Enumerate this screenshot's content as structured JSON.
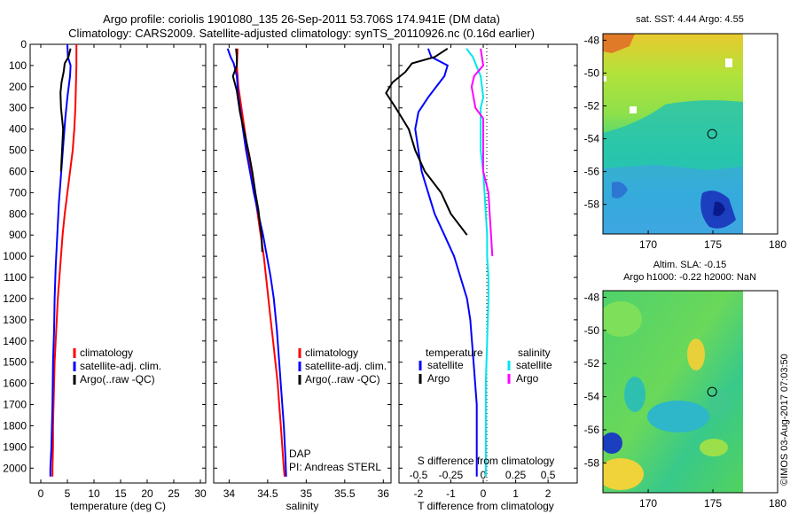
{
  "title": {
    "line1": "Argo profile: coriolis 1901080_135 26-Sep-2011 53.706S 174.941E (DM data)",
    "line2": "Climatology: CARS2009. Satellite-adjusted climatology: synTS_20110926.nc (0.16d earlier)"
  },
  "colors": {
    "clim": "#ff0000",
    "sat": "#0000ff",
    "argo": "#000000",
    "sat_s": "#00e5ee",
    "argo_s": "#ff00ff"
  },
  "chart_data": [
    {
      "type": "line",
      "id": "temperature",
      "xlabel": "temperature (deg C)",
      "ylabel": "",
      "xlim": [
        -2,
        31
      ],
      "ylim": [
        2070,
        0
      ],
      "xticks": [
        0,
        5,
        10,
        15,
        20,
        25,
        30
      ],
      "yticks": [
        0,
        100,
        200,
        300,
        400,
        500,
        600,
        700,
        800,
        900,
        1000,
        1100,
        1200,
        1300,
        1400,
        1500,
        1600,
        1700,
        1800,
        1900,
        2000
      ],
      "legend": [
        "climatology",
        "satellite-adj. clim.",
        "Argo(..raw -QC)"
      ],
      "legend_position": "lower-right",
      "series": [
        {
          "name": "climatology",
          "color": "#ff0000",
          "points": [
            [
              6.7,
              0
            ],
            [
              6.7,
              100
            ],
            [
              6.6,
              200
            ],
            [
              6.5,
              300
            ],
            [
              6.3,
              400
            ],
            [
              6.0,
              500
            ],
            [
              5.5,
              600
            ],
            [
              5.0,
              700
            ],
            [
              4.5,
              800
            ],
            [
              4.1,
              900
            ],
            [
              3.8,
              1000
            ],
            [
              3.5,
              1100
            ],
            [
              3.2,
              1200
            ],
            [
              3.0,
              1300
            ],
            [
              2.8,
              1400
            ],
            [
              2.6,
              1500
            ],
            [
              2.5,
              1600
            ],
            [
              2.4,
              1700
            ],
            [
              2.3,
              1800
            ],
            [
              2.3,
              1900
            ],
            [
              2.2,
              2000
            ],
            [
              2.2,
              2040
            ]
          ]
        },
        {
          "name": "satellite-adj. clim.",
          "color": "#0000ff",
          "points": [
            [
              5.0,
              0
            ],
            [
              5.1,
              60
            ],
            [
              5.6,
              100
            ],
            [
              5.5,
              150
            ],
            [
              5.0,
              250
            ],
            [
              4.6,
              350
            ],
            [
              4.3,
              450
            ],
            [
              4.0,
              550
            ],
            [
              3.7,
              650
            ],
            [
              3.4,
              750
            ],
            [
              3.2,
              850
            ],
            [
              3.0,
              950
            ],
            [
              2.8,
              1050
            ],
            [
              2.6,
              1200
            ],
            [
              2.5,
              1350
            ],
            [
              2.3,
              1500
            ],
            [
              2.2,
              1700
            ],
            [
              2.0,
              1900
            ],
            [
              1.8,
              2000
            ],
            [
              1.8,
              2040
            ]
          ]
        },
        {
          "name": "Argo(..raw -QC)",
          "color": "#000000",
          "points": [
            [
              5.6,
              20
            ],
            [
              5.2,
              60
            ],
            [
              4.5,
              90
            ],
            [
              4.3,
              130
            ],
            [
              3.9,
              180
            ],
            [
              3.7,
              230
            ],
            [
              3.8,
              300
            ],
            [
              4.0,
              350
            ],
            [
              4.2,
              400
            ],
            [
              4.1,
              450
            ],
            [
              4.0,
              500
            ],
            [
              3.9,
              550
            ],
            [
              3.8,
              600
            ]
          ]
        }
      ]
    },
    {
      "type": "line",
      "id": "salinity",
      "xlabel": "salinity",
      "ylabel": "",
      "xlim": [
        33.8,
        36.1
      ],
      "ylim": [
        2070,
        0
      ],
      "xticks": [
        34,
        34.5,
        35,
        35.5,
        36
      ],
      "legend": [
        "climatology",
        "satellite-adj. clim.",
        "Argo(..raw -QC)"
      ],
      "legend_position": "lower-right",
      "annotation": [
        "DAP",
        "PI: Andreas STERL"
      ],
      "series": [
        {
          "name": "climatology",
          "color": "#ff0000",
          "points": [
            [
              34.11,
              20
            ],
            [
              34.1,
              100
            ],
            [
              34.12,
              200
            ],
            [
              34.16,
              300
            ],
            [
              34.2,
              400
            ],
            [
              34.24,
              500
            ],
            [
              34.29,
              600
            ],
            [
              34.33,
              700
            ],
            [
              34.37,
              800
            ],
            [
              34.41,
              900
            ],
            [
              34.45,
              1000
            ],
            [
              34.48,
              1100
            ],
            [
              34.51,
              1200
            ],
            [
              34.54,
              1300
            ],
            [
              34.57,
              1400
            ],
            [
              34.6,
              1500
            ],
            [
              34.63,
              1600
            ],
            [
              34.65,
              1700
            ],
            [
              34.67,
              1800
            ],
            [
              34.69,
              1900
            ],
            [
              34.71,
              2000
            ],
            [
              34.72,
              2040
            ]
          ]
        },
        {
          "name": "satellite-adj. clim.",
          "color": "#0000ff",
          "points": [
            [
              33.98,
              20
            ],
            [
              34.02,
              60
            ],
            [
              34.06,
              90
            ],
            [
              34.1,
              150
            ],
            [
              34.12,
              250
            ],
            [
              34.14,
              300
            ],
            [
              34.18,
              400
            ],
            [
              34.22,
              500
            ],
            [
              34.27,
              600
            ],
            [
              34.32,
              700
            ],
            [
              34.38,
              800
            ],
            [
              34.44,
              900
            ],
            [
              34.49,
              1000
            ],
            [
              34.54,
              1100
            ],
            [
              34.58,
              1200
            ],
            [
              34.62,
              1350
            ],
            [
              34.65,
              1500
            ],
            [
              34.68,
              1650
            ],
            [
              34.71,
              1800
            ],
            [
              34.73,
              1950
            ],
            [
              34.74,
              2040
            ]
          ]
        },
        {
          "name": "Argo(..raw -QC)",
          "color": "#000000",
          "points": [
            [
              34.09,
              20
            ],
            [
              34.1,
              60
            ],
            [
              34.1,
              100
            ],
            [
              34.05,
              150
            ],
            [
              34.1,
              220
            ],
            [
              34.14,
              320
            ],
            [
              34.2,
              420
            ],
            [
              34.26,
              520
            ],
            [
              34.3,
              600
            ],
            [
              34.34,
              700
            ],
            [
              34.38,
              780
            ],
            [
              34.4,
              850
            ],
            [
              34.42,
              900
            ],
            [
              34.43,
              980
            ]
          ]
        }
      ]
    },
    {
      "type": "line",
      "id": "difference",
      "xlabel": "T difference from climatology",
      "xlabel2": "S difference from climatology",
      "xlim": [
        -2.6,
        2.9
      ],
      "ylim": [
        2070,
        0
      ],
      "xticks": [
        -2,
        -1,
        0,
        1,
        2
      ],
      "xticks2_labels": [
        "-0.5",
        "-0.25",
        "0",
        "0.25",
        "0.5"
      ],
      "legend_headers": [
        "temperature",
        "salinity"
      ],
      "legend_left": [
        "satellite",
        "Argo"
      ],
      "legend_right": [
        "satellite",
        "Argo"
      ],
      "legend_position": "lower",
      "series": [
        {
          "name": "T satellite",
          "color": "#0000ff",
          "points": [
            [
              -1.7,
              20
            ],
            [
              -1.6,
              60
            ],
            [
              -1.1,
              100
            ],
            [
              -1.2,
              150
            ],
            [
              -1.7,
              250
            ],
            [
              -2.0,
              320
            ],
            [
              -2.1,
              400
            ],
            [
              -2.0,
              500
            ],
            [
              -1.9,
              600
            ],
            [
              -1.7,
              700
            ],
            [
              -1.5,
              800
            ],
            [
              -1.2,
              900
            ],
            [
              -0.9,
              1000
            ],
            [
              -0.7,
              1100
            ],
            [
              -0.5,
              1200
            ],
            [
              -0.4,
              1300
            ],
            [
              -0.3,
              1500
            ],
            [
              -0.2,
              1700
            ],
            [
              -0.2,
              1900
            ],
            [
              -0.2,
              2040
            ]
          ]
        },
        {
          "name": "T Argo",
          "color": "#000000",
          "points": [
            [
              -1.1,
              20
            ],
            [
              -1.5,
              60
            ],
            [
              -2.2,
              90
            ],
            [
              -2.4,
              130
            ],
            [
              -2.8,
              180
            ],
            [
              -3.0,
              230
            ],
            [
              -2.7,
              300
            ],
            [
              -2.3,
              400
            ],
            [
              -2.1,
              500
            ],
            [
              -1.8,
              600
            ],
            [
              -1.3,
              700
            ],
            [
              -1.0,
              800
            ],
            [
              -0.5,
              900
            ]
          ]
        },
        {
          "name": "S satellite",
          "color": "#00e5ee",
          "points": [
            [
              -0.13,
              20
            ],
            [
              -0.08,
              60
            ],
            [
              -0.06,
              90
            ],
            [
              -0.02,
              150
            ],
            [
              0,
              250
            ],
            [
              -0.02,
              300
            ],
            [
              -0.02,
              400
            ],
            [
              -0.02,
              500
            ],
            [
              0,
              600
            ],
            [
              0.01,
              700
            ],
            [
              0.02,
              800
            ],
            [
              0.03,
              900
            ],
            [
              0.03,
              1000
            ],
            [
              0.04,
              1100
            ],
            [
              0.04,
              1200
            ],
            [
              0.03,
              1400
            ],
            [
              0.02,
              1600
            ],
            [
              0.02,
              1800
            ],
            [
              0.02,
              2000
            ],
            [
              0.02,
              2040
            ]
          ]
        },
        {
          "name": "S Argo",
          "color": "#ff00ff",
          "points": [
            [
              -0.02,
              20
            ],
            [
              0,
              100
            ],
            [
              -0.07,
              150
            ],
            [
              -0.09,
              200
            ],
            [
              -0.06,
              300
            ],
            [
              0,
              350
            ],
            [
              0,
              400
            ],
            [
              0,
              500
            ],
            [
              0,
              600
            ],
            [
              0.04,
              700
            ],
            [
              0.05,
              800
            ],
            [
              0.06,
              900
            ],
            [
              0.07,
              1000
            ]
          ]
        }
      ]
    },
    {
      "type": "heatmap",
      "id": "sst",
      "title": "sat. SST: 4.44 Argo: 4.55",
      "xlim": [
        166.5,
        180
      ],
      "ylim": [
        -59.8,
        -47.6
      ],
      "xticks": [
        170,
        175,
        180
      ],
      "yticks": [
        -48,
        -50,
        -52,
        -54,
        -56,
        -58
      ],
      "marker": [
        174.941,
        -53.706
      ]
    },
    {
      "type": "heatmap",
      "id": "sla",
      "title": "Altim. SLA: -0.15",
      "subtitle": "Argo h1000: -0.22 h2000: NaN",
      "xlim": [
        166.5,
        180
      ],
      "ylim": [
        -59.8,
        -47.6
      ],
      "xticks": [
        170,
        175,
        180
      ],
      "yticks": [
        -48,
        -50,
        -52,
        -54,
        -56,
        -58
      ],
      "marker": [
        174.941,
        -53.706
      ]
    }
  ],
  "credit": "©IMOS 03-Aug-2017 07:03:50"
}
